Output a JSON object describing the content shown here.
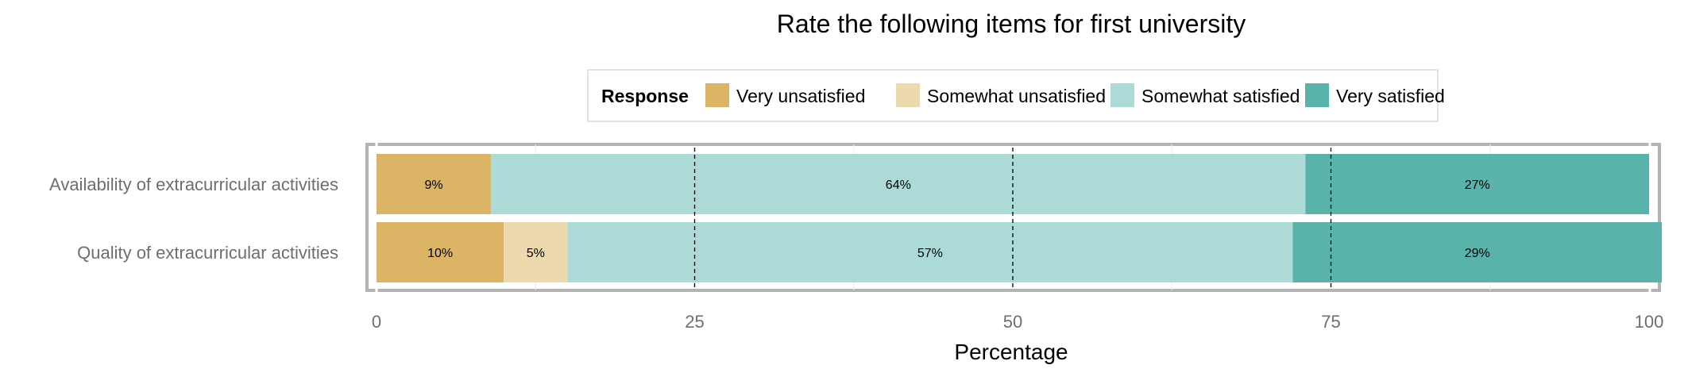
{
  "chart_data": {
    "type": "bar",
    "orientation": "horizontal",
    "stacked": true,
    "title": "Rate the following items for first university",
    "xlabel": "Percentage",
    "ylabel": "",
    "xlim": [
      0,
      100
    ],
    "xticks": [
      0,
      25,
      50,
      75,
      100
    ],
    "grid": true,
    "legend": {
      "title": "Response",
      "position": "top",
      "entries": [
        {
          "name": "Very unsatisfied",
          "color": "#dbb466"
        },
        {
          "name": "Somewhat unsatisfied",
          "color": "#ecd9ae"
        },
        {
          "name": "Somewhat satisfied",
          "color": "#acdad7"
        },
        {
          "name": "Very satisfied",
          "color": "#5ab3aa"
        }
      ]
    },
    "categories": [
      "Availability of extracurricular activities",
      "Quality of extracurricular activities"
    ],
    "series": [
      {
        "name": "Very unsatisfied",
        "color": "#dbb466",
        "values": [
          9,
          10
        ],
        "labels": [
          "9%",
          "10%"
        ]
      },
      {
        "name": "Somewhat unsatisfied",
        "color": "#ecd9ae",
        "values": [
          0,
          5
        ],
        "labels": [
          "",
          "5%"
        ]
      },
      {
        "name": "Somewhat satisfied",
        "color": "#acdad7",
        "values": [
          64,
          57
        ],
        "labels": [
          "64%",
          "57%"
        ]
      },
      {
        "name": "Very satisfied",
        "color": "#5ab3aa",
        "values": [
          27,
          29
        ],
        "labels": [
          "27%",
          "29%"
        ]
      }
    ]
  }
}
